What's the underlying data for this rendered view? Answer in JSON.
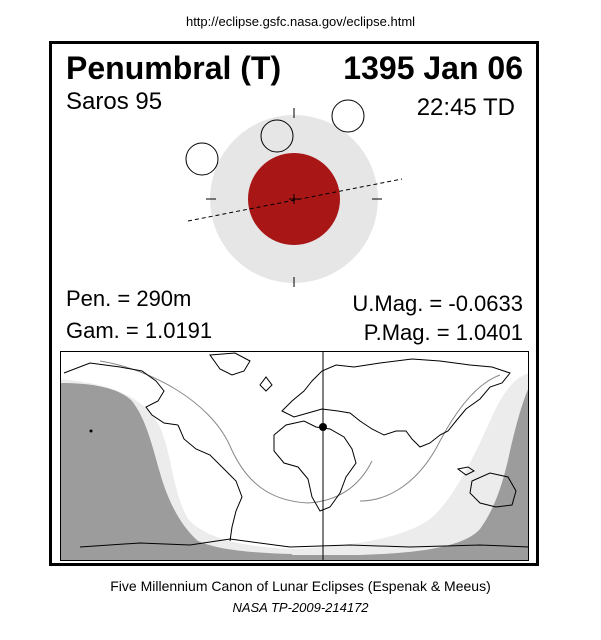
{
  "header": {
    "url": "http://eclipse.gsfc.nasa.gov/eclipse.html"
  },
  "eclipse": {
    "type": "Penumbral (T)",
    "date": "1395 Jan 06",
    "saros": "Saros  95",
    "time": "22:45 TD",
    "pen": "Pen. = 290m",
    "gam": "Gam. = 1.0191",
    "umag": "U.Mag. = -0.0633",
    "pmag": "P.Mag. = 1.0401"
  },
  "colors": {
    "umbra": "#a81616",
    "penumbra": "#e6e6e6",
    "night": "#9c9c9c",
    "twilight": "#ececec",
    "day": "#ffffff"
  },
  "footer": {
    "line1": "Five Millennium Canon of Lunar Eclipses (Espenak & Meeus)",
    "line2": "NASA TP-2009-214172"
  }
}
